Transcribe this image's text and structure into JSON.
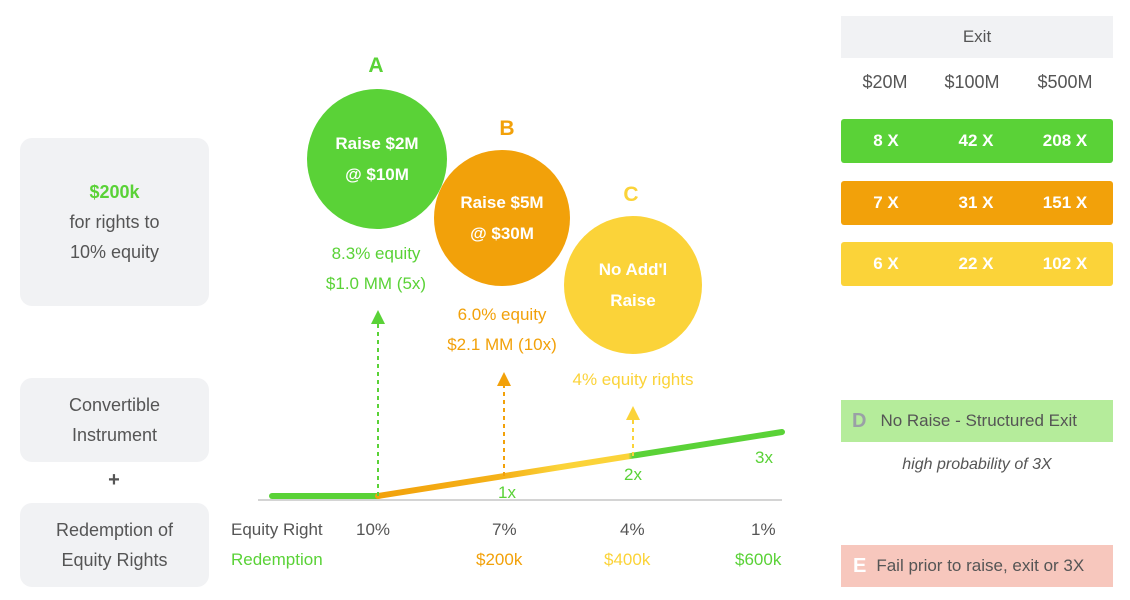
{
  "left": {
    "offer_amount": "$200k",
    "offer_line2": "for rights to",
    "offer_line3": "10% equity",
    "instrument_line1": "Convertible",
    "instrument_line2": "Instrument",
    "plus": "+",
    "redemption_line1": "Redemption of",
    "redemption_line2": "Equity Rights"
  },
  "scenarios": {
    "a": {
      "letter": "A",
      "line1": "Raise $2M",
      "line2": "@ $10M",
      "equity": "8.3% equity",
      "value": "$1.0 MM (5x)",
      "color": "#5ad237"
    },
    "b": {
      "letter": "B",
      "line1": "Raise $5M",
      "line2": "@ $30M",
      "equity": "6.0% equity",
      "value": "$2.1 MM (10x)",
      "color": "#f2a10a"
    },
    "c": {
      "letter": "C",
      "line1": "No Add'l",
      "line2": "Raise",
      "equity": "4% equity rights",
      "color": "#fbd339"
    }
  },
  "timeline": {
    "markers": [
      "1x",
      "2x",
      "3x"
    ],
    "equity_right_label": "Equity Right",
    "redemption_label": "Redemption",
    "equity_values": [
      "10%",
      "7%",
      "4%",
      "1%"
    ],
    "redemption_values": [
      "$200k",
      "$400k",
      "$600k"
    ]
  },
  "exit_table": {
    "header": "Exit",
    "columns": [
      "$20M",
      "$100M",
      "$500M"
    ],
    "rows": [
      {
        "values": [
          "8 X",
          "42 X",
          "208 X"
        ],
        "color": "#5ad237"
      },
      {
        "values": [
          "7 X",
          "31 X",
          "151 X"
        ],
        "color": "#f2a10a"
      },
      {
        "values": [
          "6 X",
          "22 X",
          "102 X"
        ],
        "color": "#fbd339"
      }
    ]
  },
  "outcomes": {
    "d": {
      "letter": "D",
      "label": "No Raise - Structured Exit",
      "note": "high probability of 3X"
    },
    "e": {
      "letter": "E",
      "label": "Fail prior to raise, exit or 3X"
    }
  }
}
